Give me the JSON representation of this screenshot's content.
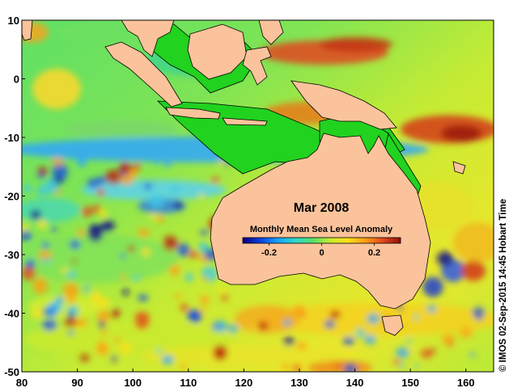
{
  "map": {
    "title": "Mar 2008",
    "colorbar": {
      "label": "Monthly Mean Sea Level Anomaly",
      "ticks": [
        "-0.2",
        "0",
        "0.2"
      ],
      "range": [
        -0.3,
        0.3
      ],
      "colors": [
        "#08007a",
        "#0a3fe0",
        "#19a3ff",
        "#2fd7c8",
        "#55e26b",
        "#c8ec2f",
        "#ffe11a",
        "#ff9e12",
        "#e2461c",
        "#8a1008"
      ]
    },
    "lon_ticks": [
      "80",
      "90",
      "100",
      "110",
      "120",
      "130",
      "140",
      "150",
      "160"
    ],
    "lat_ticks": [
      "10",
      "0",
      "-10",
      "-20",
      "-30",
      "-40",
      "-50"
    ],
    "lon_range": [
      80,
      165
    ],
    "lat_range": [
      -50,
      10
    ],
    "credit": "© IMOS 02-Sep-2015 14:45 Hobart Time",
    "land_color": "#fbc39b",
    "shelf_color": "#21d21f"
  }
}
